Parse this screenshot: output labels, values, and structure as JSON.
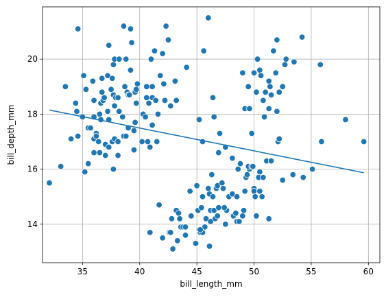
{
  "chart_data": {
    "type": "scatter",
    "title": "",
    "xlabel": "bill_length_mm",
    "ylabel": "bill_depth_mm",
    "xlim": [
      31.5,
      61.0
    ],
    "ylim": [
      12.6,
      21.9
    ],
    "xticks": [
      35,
      40,
      45,
      50,
      55,
      60
    ],
    "yticks": [
      14,
      16,
      18,
      20
    ],
    "grid": true,
    "point_color": "#1f77b4",
    "point_edge": "#ffffff",
    "line_color": "#1f77b4",
    "regression_line": {
      "x": [
        32.1,
        59.6
      ],
      "y": [
        18.15,
        15.87
      ]
    },
    "points": [
      [
        32.1,
        15.5
      ],
      [
        33.1,
        16.1
      ],
      [
        33.5,
        19.0
      ],
      [
        34.0,
        17.1
      ],
      [
        34.4,
        18.4
      ],
      [
        34.5,
        18.1
      ],
      [
        34.6,
        21.1
      ],
      [
        34.6,
        17.2
      ],
      [
        35.0,
        17.9
      ],
      [
        35.1,
        19.4
      ],
      [
        35.2,
        15.9
      ],
      [
        35.3,
        18.9
      ],
      [
        35.5,
        16.2
      ],
      [
        35.5,
        17.5
      ],
      [
        35.7,
        17.5
      ],
      [
        35.9,
        19.2
      ],
      [
        36.0,
        18.5
      ],
      [
        36.0,
        17.9
      ],
      [
        36.0,
        17.1
      ],
      [
        36.0,
        16.6
      ],
      [
        36.2,
        17.3
      ],
      [
        36.2,
        17.2
      ],
      [
        36.4,
        17.0
      ],
      [
        36.5,
        18.0
      ],
      [
        36.5,
        16.6
      ],
      [
        36.6,
        17.8
      ],
      [
        36.6,
        18.4
      ],
      [
        36.7,
        18.8
      ],
      [
        36.7,
        19.3
      ],
      [
        36.8,
        18.5
      ],
      [
        36.9,
        18.6
      ],
      [
        37.0,
        16.9
      ],
      [
        37.0,
        16.5
      ],
      [
        37.2,
        18.1
      ],
      [
        37.2,
        19.4
      ],
      [
        37.3,
        16.8
      ],
      [
        37.3,
        17.8
      ],
      [
        37.3,
        20.5
      ],
      [
        37.5,
        18.9
      ],
      [
        37.6,
        19.3
      ],
      [
        37.6,
        17.0
      ],
      [
        37.7,
        18.7
      ],
      [
        37.7,
        19.8
      ],
      [
        37.7,
        16.0
      ],
      [
        37.8,
        17.1
      ],
      [
        37.8,
        18.3
      ],
      [
        37.8,
        20.0
      ],
      [
        37.9,
        18.6
      ],
      [
        38.1,
        18.6
      ],
      [
        38.1,
        17.0
      ],
      [
        38.1,
        16.5
      ],
      [
        38.2,
        18.1
      ],
      [
        38.2,
        20.0
      ],
      [
        38.5,
        17.9
      ],
      [
        38.6,
        21.2
      ],
      [
        38.6,
        17.2
      ],
      [
        38.7,
        19.0
      ],
      [
        38.8,
        17.2
      ],
      [
        38.8,
        20.0
      ],
      [
        38.9,
        18.8
      ],
      [
        39.0,
        17.5
      ],
      [
        39.0,
        18.7
      ],
      [
        39.1,
        18.7
      ],
      [
        39.2,
        19.6
      ],
      [
        39.2,
        21.1
      ],
      [
        39.3,
        20.6
      ],
      [
        39.5,
        16.7
      ],
      [
        39.5,
        17.4
      ],
      [
        39.6,
        18.8
      ],
      [
        39.6,
        17.7
      ],
      [
        39.7,
        18.4
      ],
      [
        39.7,
        18.9
      ],
      [
        39.8,
        19.1
      ],
      [
        40.2,
        17.0
      ],
      [
        40.3,
        18.0
      ],
      [
        40.5,
        17.9
      ],
      [
        40.6,
        18.6
      ],
      [
        40.6,
        19.0
      ],
      [
        40.7,
        17.0
      ],
      [
        40.8,
        18.4
      ],
      [
        40.9,
        16.8
      ],
      [
        41.0,
        20.0
      ],
      [
        41.1,
        17.6
      ],
      [
        41.1,
        18.6
      ],
      [
        41.1,
        19.0
      ],
      [
        41.3,
        20.3
      ],
      [
        41.4,
        18.5
      ],
      [
        41.5,
        17.0
      ],
      [
        41.6,
        18.0
      ],
      [
        41.8,
        19.4
      ],
      [
        42.0,
        20.2
      ],
      [
        42.1,
        19.1
      ],
      [
        42.2,
        18.5
      ],
      [
        42.3,
        21.2
      ],
      [
        42.5,
        20.7
      ],
      [
        42.7,
        18.3
      ],
      [
        43.1,
        19.2
      ],
      [
        43.2,
        18.5
      ],
      [
        44.1,
        19.7
      ],
      [
        45.6,
        20.3
      ],
      [
        46.0,
        21.5
      ],
      [
        45.2,
        17.8
      ],
      [
        46.5,
        17.9
      ],
      [
        46.4,
        18.6
      ],
      [
        45.5,
        17.0
      ],
      [
        47.0,
        17.3
      ],
      [
        46.9,
        16.6
      ],
      [
        47.5,
        16.8
      ],
      [
        48.1,
        16.4
      ],
      [
        49.0,
        19.5
      ],
      [
        49.2,
        18.2
      ],
      [
        49.5,
        19.0
      ],
      [
        49.6,
        18.2
      ],
      [
        49.8,
        17.3
      ],
      [
        50.0,
        19.5
      ],
      [
        50.2,
        18.8
      ],
      [
        50.3,
        20.0
      ],
      [
        50.5,
        19.6
      ],
      [
        50.6,
        19.4
      ],
      [
        50.8,
        18.5
      ],
      [
        50.9,
        17.9
      ],
      [
        51.0,
        18.8
      ],
      [
        51.3,
        19.2
      ],
      [
        51.3,
        18.2
      ],
      [
        51.4,
        19.0
      ],
      [
        51.5,
        18.7
      ],
      [
        51.7,
        20.3
      ],
      [
        51.9,
        19.5
      ],
      [
        52.0,
        18.1
      ],
      [
        52.0,
        20.7
      ],
      [
        52.2,
        18.8
      ],
      [
        52.5,
        19.0
      ],
      [
        52.7,
        19.8
      ],
      [
        52.8,
        20.0
      ],
      [
        53.5,
        19.9
      ],
      [
        54.2,
        20.8
      ],
      [
        55.8,
        19.8
      ],
      [
        58.0,
        17.8
      ],
      [
        49.6,
        16.0
      ],
      [
        50.0,
        15.3
      ],
      [
        50.5,
        15.9
      ],
      [
        52.1,
        17.0
      ],
      [
        55.9,
        17.0
      ],
      [
        59.6,
        17.0
      ],
      [
        40.9,
        13.7
      ],
      [
        41.7,
        14.7
      ],
      [
        42.0,
        13.5
      ],
      [
        42.6,
        13.7
      ],
      [
        42.7,
        13.7
      ],
      [
        42.8,
        14.2
      ],
      [
        42.9,
        13.1
      ],
      [
        43.2,
        14.5
      ],
      [
        43.3,
        13.4
      ],
      [
        43.4,
        14.4
      ],
      [
        43.5,
        14.2
      ],
      [
        43.6,
        13.9
      ],
      [
        44.0,
        13.6
      ],
      [
        44.4,
        15.2
      ],
      [
        44.5,
        14.3
      ],
      [
        44.9,
        13.3
      ],
      [
        45.1,
        14.5
      ],
      [
        45.2,
        13.8
      ],
      [
        45.3,
        13.7
      ],
      [
        45.4,
        14.6
      ],
      [
        45.5,
        13.7
      ],
      [
        45.5,
        15.0
      ],
      [
        45.7,
        13.9
      ],
      [
        45.8,
        14.2
      ],
      [
        46.1,
        13.2
      ],
      [
        46.1,
        15.1
      ],
      [
        46.2,
        14.5
      ],
      [
        46.2,
        14.1
      ],
      [
        46.3,
        15.8
      ],
      [
        46.4,
        15.0
      ],
      [
        46.5,
        14.5
      ],
      [
        46.6,
        14.2
      ],
      [
        46.7,
        15.3
      ],
      [
        46.8,
        14.3
      ],
      [
        46.8,
        15.4
      ],
      [
        46.9,
        14.6
      ],
      [
        47.2,
        15.5
      ],
      [
        47.3,
        15.3
      ],
      [
        47.4,
        14.6
      ],
      [
        47.5,
        14.0
      ],
      [
        47.6,
        14.5
      ],
      [
        47.8,
        15.0
      ],
      [
        48.1,
        15.1
      ],
      [
        48.2,
        14.3
      ],
      [
        48.4,
        14.4
      ],
      [
        48.5,
        14.1
      ],
      [
        48.6,
        16.0
      ],
      [
        48.7,
        14.1
      ],
      [
        48.8,
        16.2
      ],
      [
        49.1,
        14.5
      ],
      [
        49.2,
        15.2
      ],
      [
        49.3,
        15.7
      ],
      [
        49.4,
        15.8
      ],
      [
        49.5,
        16.1
      ],
      [
        49.8,
        16.1
      ],
      [
        49.9,
        16.1
      ],
      [
        50.0,
        15.2
      ],
      [
        50.1,
        15.0
      ],
      [
        50.2,
        14.3
      ],
      [
        50.4,
        15.7
      ],
      [
        50.5,
        15.2
      ],
      [
        50.7,
        15.0
      ],
      [
        50.8,
        15.7
      ],
      [
        51.1,
        16.3
      ],
      [
        51.3,
        14.2
      ],
      [
        51.5,
        16.3
      ],
      [
        52.1,
        17.0
      ],
      [
        52.2,
        17.1
      ],
      [
        52.5,
        15.6
      ],
      [
        53.4,
        15.8
      ],
      [
        54.3,
        15.7
      ],
      [
        55.1,
        16.0
      ],
      [
        43.8,
        13.9
      ],
      [
        44.0,
        13.9
      ],
      [
        45.0,
        15.4
      ],
      [
        45.3,
        13.8
      ],
      [
        46.0,
        15.3
      ],
      [
        47.4,
        14.6
      ],
      [
        48.5,
        15.0
      ],
      [
        49.0,
        14.3
      ]
    ]
  }
}
